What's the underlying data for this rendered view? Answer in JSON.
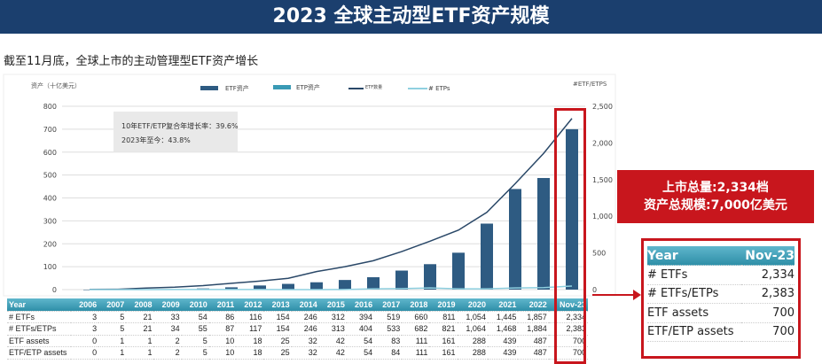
{
  "title": "2023 全球主动型ETF资产规模",
  "subtitle": "截至11月底，全球上市的主动管理型ETF资产增长",
  "annotation": {
    "line1": "10年ETF/ETP复合年增长率：39.6%",
    "line2": "2023年至今：43.8%"
  },
  "callout": {
    "line1": "上市总量:2,334档",
    "line2": "资产总规模:7,000亿美元"
  },
  "colors": {
    "title_bg": "#1b3f6e",
    "etf_assets": "#2e5b82",
    "etp_assets": "#3a9ab5",
    "etf_count": "#2a4868",
    "etp_count": "#8fd0e0",
    "highlight": "#c8161d"
  },
  "chart_data": {
    "type": "bar",
    "categories": [
      "2006",
      "2007",
      "2008",
      "2009",
      "2010",
      "2011",
      "2012",
      "2013",
      "2014",
      "2015",
      "2016",
      "2017",
      "2018",
      "2019",
      "2020",
      "2021",
      "2022",
      "Nov-23"
    ],
    "ylabel": "资产（十亿美元）",
    "y2label": "#ETF/ETPS",
    "ylim": [
      0,
      800
    ],
    "y2lim": [
      0,
      2500
    ],
    "yticks": [
      "0",
      "100",
      "200",
      "300",
      "400",
      "500",
      "600",
      "700",
      "800"
    ],
    "y2ticks": [
      "0",
      "500",
      "1,000",
      "1,500",
      "2,000",
      "2,500"
    ],
    "legend": [
      "ETF资产",
      "ETP资产",
      "ETF数量",
      "# ETPs"
    ],
    "legend_position": "top",
    "grid": true,
    "series": [
      {
        "name": "ETF资产",
        "type": "bar",
        "axis": "left",
        "values": [
          0,
          1,
          1,
          2,
          5,
          10,
          18,
          25,
          32,
          42,
          54,
          83,
          111,
          161,
          288,
          439,
          487,
          700
        ]
      },
      {
        "name": "ETF数量",
        "type": "line",
        "axis": "right",
        "values": [
          3,
          5,
          21,
          33,
          54,
          86,
          116,
          154,
          246,
          312,
          394,
          519,
          660,
          811,
          1054,
          1445,
          1857,
          2334
        ]
      }
    ]
  },
  "table": {
    "header": [
      "Year",
      "2006",
      "2007",
      "2008",
      "2009",
      "2010",
      "2011",
      "2012",
      "2013",
      "2014",
      "2015",
      "2016",
      "2017",
      "2018",
      "2019",
      "2020",
      "2021",
      "2022",
      "Nov-23"
    ],
    "rows": [
      [
        "# ETFs",
        "3",
        "5",
        "21",
        "33",
        "54",
        "86",
        "116",
        "154",
        "246",
        "312",
        "394",
        "519",
        "660",
        "811",
        "1,054",
        "1,445",
        "1,857",
        "2,334"
      ],
      [
        "# ETFs/ETPs",
        "3",
        "5",
        "21",
        "34",
        "55",
        "87",
        "117",
        "154",
        "246",
        "313",
        "404",
        "533",
        "682",
        "821",
        "1,064",
        "1,468",
        "1,884",
        "2,383"
      ],
      [
        "ETF assets",
        "0",
        "1",
        "1",
        "2",
        "5",
        "10",
        "18",
        "25",
        "32",
        "42",
        "54",
        "83",
        "111",
        "161",
        "288",
        "439",
        "487",
        "700"
      ],
      [
        "ETF/ETP assets",
        "0",
        "1",
        "1",
        "2",
        "5",
        "10",
        "18",
        "25",
        "32",
        "42",
        "54",
        "84",
        "111",
        "161",
        "288",
        "439",
        "487",
        "700"
      ]
    ]
  },
  "mini_table": {
    "header": [
      "Year",
      "Nov-23"
    ],
    "rows": [
      [
        "# ETFs",
        "2,334"
      ],
      [
        "# ETFs/ETPs",
        "2,383"
      ],
      [
        "ETF assets",
        "700"
      ],
      [
        "ETF/ETP assets",
        "700"
      ]
    ]
  }
}
